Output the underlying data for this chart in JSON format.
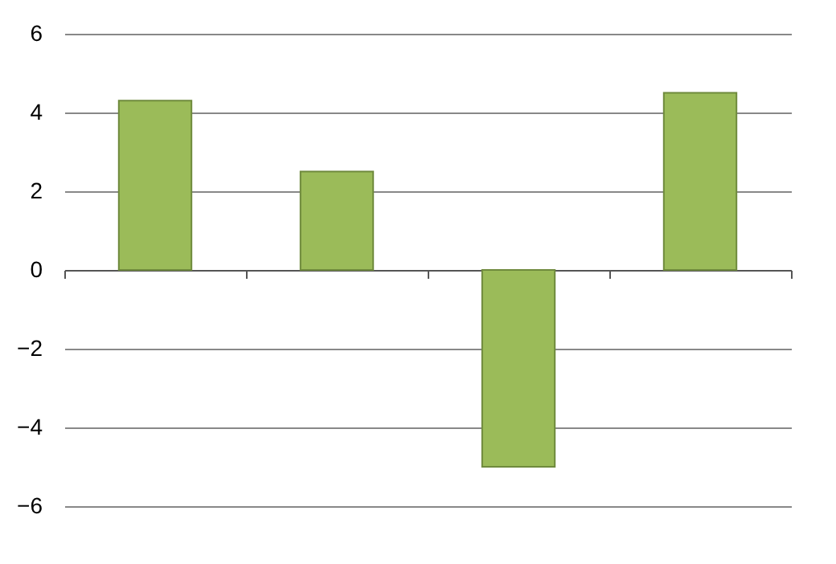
{
  "chart_data": {
    "type": "bar",
    "categories": [
      null,
      null,
      null,
      null
    ],
    "values": [
      4.3,
      2.5,
      -5,
      4.5
    ],
    "color": "#9bbb59",
    "ylim": [
      -6,
      6
    ],
    "yticks": [
      -6,
      -4,
      -2,
      0,
      2,
      4,
      6
    ],
    "grid": "y",
    "tick_labels": "y"
  }
}
